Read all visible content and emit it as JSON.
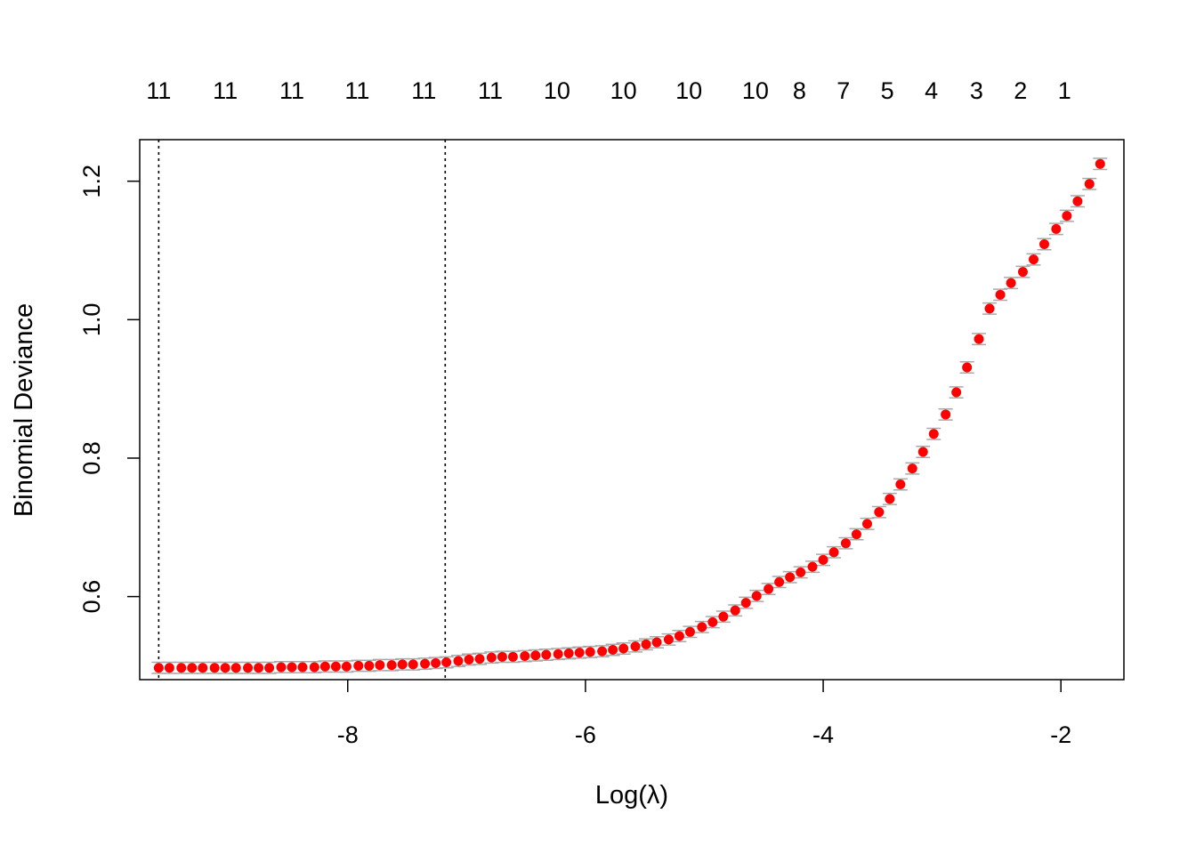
{
  "chart_data": {
    "type": "scatter",
    "xlabel": "Log(λ)",
    "ylabel": "Binomial Deviance",
    "xlim": [
      -9.75,
      -1.47
    ],
    "ylim": [
      0.48,
      1.26
    ],
    "x_ticks": [
      -8,
      -6,
      -4,
      -2
    ],
    "x_tick_labels": [
      "-8",
      "-6",
      "-4",
      "-2"
    ],
    "y_ticks": [
      0.6,
      0.8,
      1.0,
      1.2
    ],
    "y_tick_labels": [
      "0.6",
      "0.8",
      "1.0",
      "1.2"
    ],
    "top_axis": {
      "x": [
        -9.59,
        -9.03,
        -8.47,
        -7.92,
        -7.36,
        -6.8,
        -6.24,
        -5.68,
        -5.13,
        -4.57,
        -4.2,
        -3.83,
        -3.46,
        -3.09,
        -2.71,
        -2.34,
        -1.97
      ],
      "labels": [
        "11",
        "11",
        "11",
        "11",
        "11",
        "11",
        "10",
        "10",
        "10",
        "10",
        "8",
        "7",
        "5",
        "4",
        "3",
        "2",
        "1"
      ]
    },
    "vlines": [
      -9.59,
      -7.18
    ],
    "colors": {
      "points": "#ff0000",
      "error_bars": "#a9a9a9",
      "vlines": "#000000"
    },
    "grid": false,
    "legend": "none",
    "series": [
      {
        "x": [
          -9.59,
          -9.5,
          -9.4,
          -9.31,
          -9.22,
          -9.12,
          -9.03,
          -8.94,
          -8.84,
          -8.75,
          -8.66,
          -8.56,
          -8.47,
          -8.38,
          -8.28,
          -8.19,
          -8.1,
          -8.01,
          -7.91,
          -7.82,
          -7.73,
          -7.63,
          -7.54,
          -7.45,
          -7.35,
          -7.26,
          -7.17,
          -7.07,
          -6.98,
          -6.89,
          -6.79,
          -6.7,
          -6.61,
          -6.51,
          -6.42,
          -6.33,
          -6.23,
          -6.14,
          -6.05,
          -5.96,
          -5.86,
          -5.77,
          -5.68,
          -5.58,
          -5.49,
          -5.4,
          -5.3,
          -5.21,
          -5.12,
          -5.02,
          -4.93,
          -4.84,
          -4.74,
          -4.65,
          -4.56,
          -4.46,
          -4.37,
          -4.28,
          -4.19,
          -4.09,
          -4.0,
          -3.91,
          -3.81,
          -3.72,
          -3.63,
          -3.53,
          -3.44,
          -3.35,
          -3.25,
          -3.16,
          -3.07,
          -2.97,
          -2.88,
          -2.79,
          -2.69,
          -2.6,
          -2.51,
          -2.42,
          -2.32,
          -2.23,
          -2.14,
          -2.04,
          -1.95,
          -1.86,
          -1.76,
          -1.67
        ],
        "y": [
          0.497,
          0.497,
          0.497,
          0.497,
          0.497,
          0.497,
          0.497,
          0.497,
          0.497,
          0.497,
          0.497,
          0.498,
          0.498,
          0.498,
          0.498,
          0.499,
          0.499,
          0.499,
          0.5,
          0.5,
          0.501,
          0.501,
          0.502,
          0.502,
          0.503,
          0.504,
          0.505,
          0.507,
          0.509,
          0.51,
          0.512,
          0.513,
          0.513,
          0.514,
          0.515,
          0.516,
          0.517,
          0.518,
          0.519,
          0.52,
          0.521,
          0.523,
          0.525,
          0.528,
          0.531,
          0.534,
          0.538,
          0.543,
          0.549,
          0.556,
          0.563,
          0.571,
          0.58,
          0.591,
          0.601,
          0.611,
          0.621,
          0.628,
          0.635,
          0.643,
          0.653,
          0.664,
          0.677,
          0.69,
          0.705,
          0.722,
          0.741,
          0.762,
          0.785,
          0.809,
          0.835,
          0.863,
          0.895,
          0.931,
          0.972,
          1.016,
          1.036,
          1.053,
          1.069,
          1.087,
          1.109,
          1.131,
          1.15,
          1.171,
          1.196,
          1.225
        ],
        "err": [
          0.008,
          0.008,
          0.008,
          0.008,
          0.008,
          0.008,
          0.008,
          0.008,
          0.008,
          0.008,
          0.008,
          0.008,
          0.008,
          0.008,
          0.008,
          0.008,
          0.008,
          0.008,
          0.008,
          0.008,
          0.008,
          0.008,
          0.008,
          0.008,
          0.008,
          0.008,
          0.008,
          0.008,
          0.008,
          0.008,
          0.008,
          0.008,
          0.008,
          0.008,
          0.008,
          0.008,
          0.008,
          0.008,
          0.008,
          0.008,
          0.008,
          0.008,
          0.008,
          0.008,
          0.008,
          0.008,
          0.008,
          0.008,
          0.008,
          0.008,
          0.008,
          0.008,
          0.008,
          0.008,
          0.008,
          0.008,
          0.008,
          0.008,
          0.008,
          0.008,
          0.008,
          0.008,
          0.008,
          0.008,
          0.008,
          0.008,
          0.008,
          0.008,
          0.008,
          0.008,
          0.008,
          0.008,
          0.008,
          0.008,
          0.008,
          0.008,
          0.008,
          0.008,
          0.008,
          0.008,
          0.008,
          0.008,
          0.008,
          0.008,
          0.008,
          0.008
        ]
      }
    ]
  }
}
